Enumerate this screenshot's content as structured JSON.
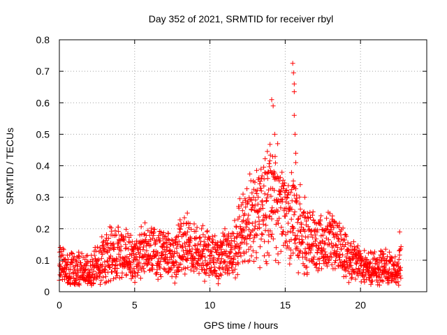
{
  "chart_data": {
    "type": "scatter",
    "title": "Day 352 of 2021, SRMTID for receiver rbyl",
    "xlabel": "GPS time / hours",
    "ylabel": "SRMTID / TECUs",
    "xlim": [
      0,
      24.4
    ],
    "ylim": [
      0,
      0.8
    ],
    "x_ticks": [
      0,
      5,
      10,
      15,
      20
    ],
    "x_tick_labels": [
      "0",
      "5",
      "10",
      "15",
      "20"
    ],
    "y_ticks": [
      0,
      0.1,
      0.2,
      0.3,
      0.4,
      0.5,
      0.6,
      0.7,
      0.8
    ],
    "y_tick_labels": [
      "0",
      "0.1",
      "0.2",
      "0.3",
      "0.4",
      "0.5",
      "0.6",
      "0.7",
      "0.8"
    ],
    "grid": true,
    "marker": "+",
    "marker_color": "#ff0000",
    "series": [
      {
        "name": "SRMTID",
        "profile_x": [
          0,
          0.5,
          1,
          1.5,
          2,
          2.5,
          3,
          3.5,
          4,
          4.5,
          5,
          5.5,
          6,
          6.5,
          7,
          7.5,
          8,
          8.5,
          9,
          9.5,
          10,
          10.5,
          11,
          11.5,
          12,
          12.5,
          13,
          13.5,
          14,
          14.5,
          15,
          15.5,
          16,
          16.5,
          17,
          17.5,
          18,
          18.5,
          19,
          19.5,
          20,
          20.5,
          21,
          21.5,
          22,
          22.5,
          22.7
        ],
        "profile_y": [
          0.08,
          0.08,
          0.07,
          0.07,
          0.06,
          0.09,
          0.11,
          0.12,
          0.13,
          0.12,
          0.1,
          0.12,
          0.13,
          0.12,
          0.13,
          0.11,
          0.14,
          0.15,
          0.12,
          0.13,
          0.11,
          0.1,
          0.12,
          0.11,
          0.18,
          0.22,
          0.24,
          0.25,
          0.3,
          0.26,
          0.22,
          0.25,
          0.18,
          0.17,
          0.16,
          0.14,
          0.16,
          0.13,
          0.12,
          0.1,
          0.08,
          0.07,
          0.07,
          0.08,
          0.07,
          0.06,
          0.12
        ],
        "peaks": [
          {
            "x": 8.5,
            "y": 0.25
          },
          {
            "x": 12.2,
            "y": 0.31
          },
          {
            "x": 13.9,
            "y": 0.38
          },
          {
            "x": 14.1,
            "y": 0.61
          },
          {
            "x": 14.2,
            "y": 0.59
          },
          {
            "x": 14.3,
            "y": 0.5
          },
          {
            "x": 14.5,
            "y": 0.47
          },
          {
            "x": 15.5,
            "y": 0.725
          },
          {
            "x": 15.55,
            "y": 0.695
          },
          {
            "x": 15.6,
            "y": 0.66
          },
          {
            "x": 15.6,
            "y": 0.635
          },
          {
            "x": 15.6,
            "y": 0.56
          },
          {
            "x": 15.65,
            "y": 0.5
          },
          {
            "x": 15.7,
            "y": 0.44
          },
          {
            "x": 15.7,
            "y": 0.41
          },
          {
            "x": 16.0,
            "y": 0.34
          },
          {
            "x": 16.3,
            "y": 0.3
          },
          {
            "x": 22.6,
            "y": 0.19
          }
        ]
      }
    ]
  }
}
